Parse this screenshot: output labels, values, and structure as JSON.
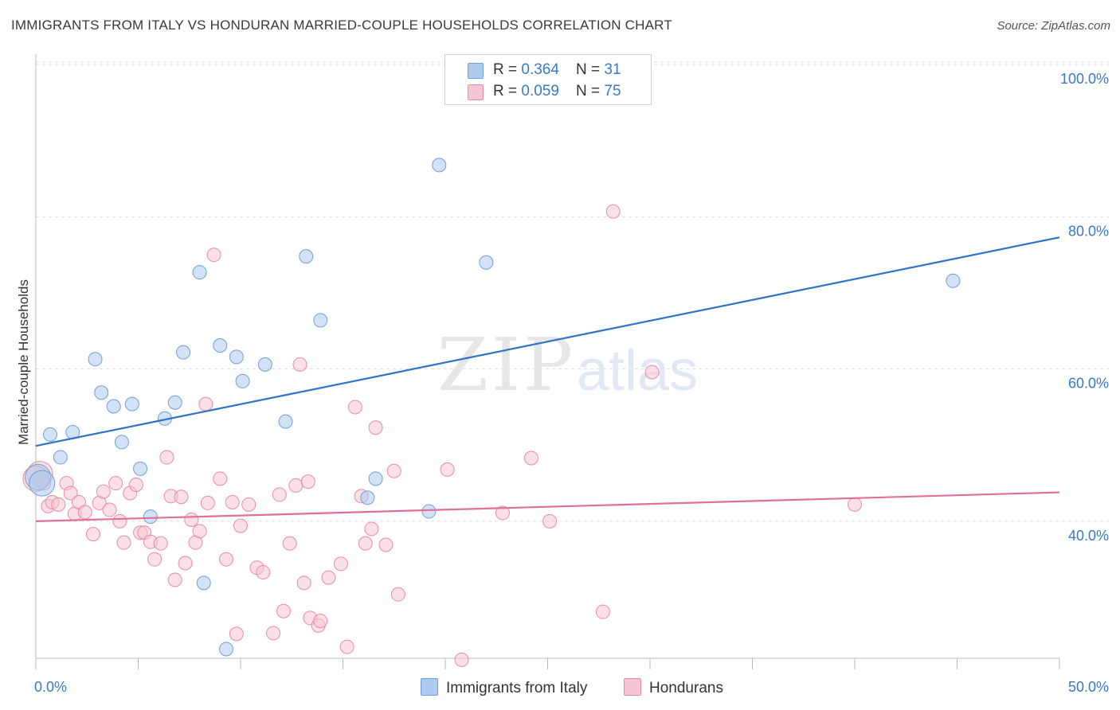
{
  "title": "IMMIGRANTS FROM ITALY VS HONDURAN MARRIED-COUPLE HOUSEHOLDS CORRELATION CHART",
  "source": "Source: ZipAtlas.com",
  "watermark": {
    "zip": "ZIP",
    "atlas": "atlas"
  },
  "legend": {
    "rows": [
      {
        "r_label": "R = ",
        "r_value": "0.364",
        "n_label": "N = ",
        "n_value": "31",
        "color": "#aecbf0",
        "border": "#6f9fd8"
      },
      {
        "r_label": "R = ",
        "r_value": "0.059",
        "n_label": "N = ",
        "n_value": "75",
        "color": "#f7c6d4",
        "border": "#e88aa6"
      }
    ]
  },
  "bottom_legend": {
    "italy": "Immigrants from Italy",
    "honduras": "Hondurans"
  },
  "chart_data": {
    "type": "scatter",
    "xlabel": "",
    "ylabel": "Married-couple Households",
    "xlim": [
      0,
      50
    ],
    "ylim": [
      22,
      102
    ],
    "x_tick_labels": [
      "0.0%",
      "50.0%"
    ],
    "y_ticks": [
      {
        "value": 40,
        "label": "40.0%"
      },
      {
        "value": 60,
        "label": "60.0%"
      },
      {
        "value": 80,
        "label": "80.0%"
      },
      {
        "value": 100,
        "label": "100.0%"
      }
    ],
    "grid": true,
    "series": [
      {
        "name": "Immigrants from Italy",
        "color": "#aecbf0",
        "stroke": "#6f9fd8",
        "line_color": "#2f72c9",
        "trend": {
          "x": [
            0,
            50
          ],
          "y": [
            49.9,
            77.3
          ]
        },
        "points": [
          [
            0.1,
            45.8
          ],
          [
            0.7,
            51.4
          ],
          [
            1.2,
            48.4
          ],
          [
            1.8,
            51.7
          ],
          [
            2.9,
            61.3
          ],
          [
            3.2,
            56.9
          ],
          [
            3.8,
            55.1
          ],
          [
            4.2,
            50.4
          ],
          [
            4.7,
            55.4
          ],
          [
            5.1,
            46.9
          ],
          [
            5.6,
            40.6
          ],
          [
            6.3,
            53.5
          ],
          [
            6.8,
            55.6
          ],
          [
            7.2,
            62.2
          ],
          [
            8.0,
            72.7
          ],
          [
            8.2,
            31.9
          ],
          [
            9.0,
            63.1
          ],
          [
            9.3,
            23.2
          ],
          [
            9.8,
            61.6
          ],
          [
            10.1,
            58.4
          ],
          [
            11.2,
            60.6
          ],
          [
            12.2,
            53.1
          ],
          [
            13.2,
            74.8
          ],
          [
            13.9,
            66.4
          ],
          [
            16.2,
            43.1
          ],
          [
            16.6,
            45.6
          ],
          [
            19.2,
            41.3
          ],
          [
            19.7,
            86.8
          ],
          [
            22.0,
            74.0
          ],
          [
            44.8,
            71.6
          ],
          [
            0.3,
            45.0
          ]
        ]
      },
      {
        "name": "Hondurans",
        "color": "#f7c6d4",
        "stroke": "#e88aa6",
        "line_color": "#e0709a",
        "trend": {
          "x": [
            0,
            50
          ],
          "y": [
            40.0,
            43.8
          ]
        },
        "points": [
          [
            0.2,
            46.2
          ],
          [
            0.4,
            45.0
          ],
          [
            0.6,
            42.0
          ],
          [
            0.8,
            42.5
          ],
          [
            1.1,
            42.2
          ],
          [
            1.5,
            45.0
          ],
          [
            1.7,
            43.7
          ],
          [
            1.9,
            41.0
          ],
          [
            2.1,
            42.5
          ],
          [
            2.4,
            41.2
          ],
          [
            2.8,
            38.3
          ],
          [
            3.1,
            42.4
          ],
          [
            3.3,
            43.9
          ],
          [
            3.6,
            41.5
          ],
          [
            3.9,
            45.0
          ],
          [
            4.1,
            40.0
          ],
          [
            4.3,
            37.2
          ],
          [
            4.6,
            43.7
          ],
          [
            4.9,
            44.8
          ],
          [
            5.1,
            38.5
          ],
          [
            5.3,
            38.5
          ],
          [
            5.6,
            37.3
          ],
          [
            5.8,
            35.0
          ],
          [
            6.1,
            37.1
          ],
          [
            6.4,
            48.4
          ],
          [
            6.6,
            43.3
          ],
          [
            6.8,
            32.3
          ],
          [
            7.1,
            43.2
          ],
          [
            7.3,
            34.5
          ],
          [
            7.6,
            40.2
          ],
          [
            7.8,
            37.2
          ],
          [
            8.0,
            38.7
          ],
          [
            8.4,
            42.4
          ],
          [
            8.3,
            55.4
          ],
          [
            8.7,
            75.0
          ],
          [
            9.0,
            45.6
          ],
          [
            9.3,
            35.0
          ],
          [
            9.6,
            42.5
          ],
          [
            9.8,
            25.2
          ],
          [
            10.0,
            39.4
          ],
          [
            10.4,
            42.2
          ],
          [
            10.8,
            33.9
          ],
          [
            11.1,
            33.3
          ],
          [
            11.6,
            25.3
          ],
          [
            11.9,
            43.5
          ],
          [
            12.1,
            28.2
          ],
          [
            12.4,
            37.1
          ],
          [
            12.7,
            44.7
          ],
          [
            12.9,
            60.6
          ],
          [
            13.3,
            45.2
          ],
          [
            13.1,
            31.9
          ],
          [
            13.4,
            27.3
          ],
          [
            13.8,
            26.3
          ],
          [
            13.9,
            26.9
          ],
          [
            14.3,
            32.6
          ],
          [
            14.9,
            34.4
          ],
          [
            15.2,
            23.5
          ],
          [
            15.6,
            55.0
          ],
          [
            15.9,
            43.3
          ],
          [
            16.1,
            37.1
          ],
          [
            16.4,
            39.0
          ],
          [
            16.6,
            52.3
          ],
          [
            17.1,
            36.9
          ],
          [
            17.5,
            46.6
          ],
          [
            17.7,
            30.4
          ],
          [
            20.1,
            46.8
          ],
          [
            20.8,
            21.8
          ],
          [
            22.8,
            41.1
          ],
          [
            24.2,
            48.3
          ],
          [
            25.1,
            40.0
          ],
          [
            27.7,
            28.1
          ],
          [
            28.2,
            80.7
          ],
          [
            30.1,
            59.6
          ],
          [
            40.0,
            42.2
          ],
          [
            0.0,
            45.6
          ]
        ]
      }
    ]
  }
}
